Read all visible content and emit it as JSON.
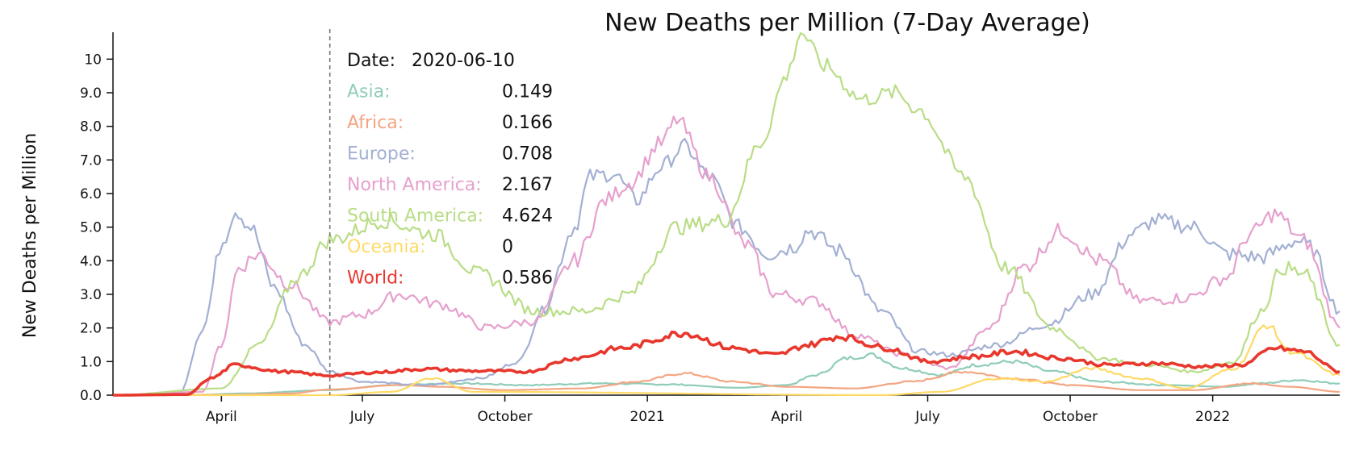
{
  "chart_data": {
    "type": "line",
    "title": "New Deaths per Million (7-Day Average)",
    "xlabel": "",
    "ylabel": "New Deaths per Million",
    "x_range": [
      "2020-01-22",
      "2022-03-24"
    ],
    "ylim": [
      0,
      10.8
    ],
    "y_ticks": [
      0,
      1,
      2,
      3,
      4,
      5,
      6,
      7,
      8,
      9,
      10
    ],
    "y_tick_labels": [
      "0.0",
      "1.0",
      "2.0",
      "3.0",
      "4.0",
      "5.0",
      "6.0",
      "7.0",
      "8.0",
      "9.0",
      "10"
    ],
    "x_ticks": [
      {
        "date": "2020-04-01",
        "label": "April"
      },
      {
        "date": "2020-07-01",
        "label": "July"
      },
      {
        "date": "2020-10-01",
        "label": "October"
      },
      {
        "date": "2021-01-01",
        "label": "2021"
      },
      {
        "date": "2021-04-01",
        "label": "April"
      },
      {
        "date": "2021-07-01",
        "label": "July"
      },
      {
        "date": "2021-10-01",
        "label": "October"
      },
      {
        "date": "2022-01-01",
        "label": "2022"
      }
    ],
    "grid": false,
    "legend": "tooltip at top-left",
    "hover_date": "2020-06-10",
    "series": [
      {
        "name": "Asia",
        "color": "#8fcdb8",
        "width": 2.2,
        "points": [
          [
            "2020-01-22",
            0
          ],
          [
            "2020-03-15",
            0.01
          ],
          [
            "2020-04-15",
            0.05
          ],
          [
            "2020-06-10",
            0.15
          ],
          [
            "2020-07-20",
            0.3
          ],
          [
            "2020-09-01",
            0.35
          ],
          [
            "2020-10-15",
            0.3
          ],
          [
            "2020-12-01",
            0.35
          ],
          [
            "2021-01-15",
            0.32
          ],
          [
            "2021-03-01",
            0.22
          ],
          [
            "2021-04-01",
            0.3
          ],
          [
            "2021-04-20",
            0.6
          ],
          [
            "2021-05-10",
            1.1
          ],
          [
            "2021-05-25",
            1.2
          ],
          [
            "2021-06-15",
            0.8
          ],
          [
            "2021-07-10",
            0.6
          ],
          [
            "2021-08-01",
            0.9
          ],
          [
            "2021-08-25",
            1.0
          ],
          [
            "2021-09-20",
            0.7
          ],
          [
            "2021-10-20",
            0.4
          ],
          [
            "2021-12-01",
            0.3
          ],
          [
            "2022-01-10",
            0.25
          ],
          [
            "2022-02-01",
            0.35
          ],
          [
            "2022-02-25",
            0.45
          ],
          [
            "2022-03-24",
            0.35
          ]
        ]
      },
      {
        "name": "Africa",
        "color": "#f4a582",
        "width": 2.2,
        "points": [
          [
            "2020-01-22",
            0
          ],
          [
            "2020-04-01",
            0.01
          ],
          [
            "2020-05-15",
            0.05
          ],
          [
            "2020-06-10",
            0.17
          ],
          [
            "2020-07-25",
            0.3
          ],
          [
            "2020-08-20",
            0.25
          ],
          [
            "2020-10-01",
            0.15
          ],
          [
            "2020-11-20",
            0.2
          ],
          [
            "2020-12-25",
            0.4
          ],
          [
            "2021-01-25",
            0.65
          ],
          [
            "2021-02-25",
            0.4
          ],
          [
            "2021-04-01",
            0.25
          ],
          [
            "2021-05-15",
            0.2
          ],
          [
            "2021-06-20",
            0.4
          ],
          [
            "2021-07-25",
            0.7
          ],
          [
            "2021-08-25",
            0.5
          ],
          [
            "2021-10-01",
            0.3
          ],
          [
            "2021-11-15",
            0.15
          ],
          [
            "2021-12-20",
            0.15
          ],
          [
            "2022-01-25",
            0.35
          ],
          [
            "2022-02-20",
            0.25
          ],
          [
            "2022-03-24",
            0.1
          ]
        ]
      },
      {
        "name": "Europe",
        "color": "#a3b0d3",
        "width": 2.2,
        "points": [
          [
            "2020-01-22",
            0
          ],
          [
            "2020-03-05",
            0.05
          ],
          [
            "2020-03-20",
            2.0
          ],
          [
            "2020-04-02",
            4.6
          ],
          [
            "2020-04-10",
            5.5
          ],
          [
            "2020-04-20",
            5.0
          ],
          [
            "2020-05-05",
            3.2
          ],
          [
            "2020-05-25",
            1.5
          ],
          [
            "2020-06-10",
            0.708
          ],
          [
            "2020-07-01",
            0.4
          ],
          [
            "2020-08-10",
            0.3
          ],
          [
            "2020-09-15",
            0.5
          ],
          [
            "2020-10-10",
            1.0
          ],
          [
            "2020-10-25",
            2.5
          ],
          [
            "2020-11-15",
            5.0
          ],
          [
            "2020-11-25",
            6.5
          ],
          [
            "2020-12-10",
            6.6
          ],
          [
            "2020-12-25",
            5.8
          ],
          [
            "2021-01-10",
            6.8
          ],
          [
            "2021-01-25",
            7.4
          ],
          [
            "2021-02-10",
            6.5
          ],
          [
            "2021-03-01",
            5.0
          ],
          [
            "2021-03-20",
            4.2
          ],
          [
            "2021-04-05",
            4.4
          ],
          [
            "2021-04-15",
            4.9
          ],
          [
            "2021-05-05",
            4.3
          ],
          [
            "2021-06-01",
            2.5
          ],
          [
            "2021-06-25",
            1.3
          ],
          [
            "2021-07-15",
            1.2
          ],
          [
            "2021-08-15",
            1.5
          ],
          [
            "2021-09-15",
            2.1
          ],
          [
            "2021-10-15",
            3.0
          ],
          [
            "2021-11-10",
            4.8
          ],
          [
            "2021-11-25",
            5.2
          ],
          [
            "2021-12-20",
            5.0
          ],
          [
            "2022-01-10",
            4.2
          ],
          [
            "2022-02-01",
            4.1
          ],
          [
            "2022-02-25",
            4.6
          ],
          [
            "2022-03-05",
            4.4
          ],
          [
            "2022-03-24",
            2.5
          ]
        ]
      },
      {
        "name": "North America",
        "color": "#e6a0cd",
        "width": 2.2,
        "points": [
          [
            "2020-01-22",
            0
          ],
          [
            "2020-03-20",
            0.1
          ],
          [
            "2020-04-01",
            1.5
          ],
          [
            "2020-04-12",
            3.8
          ],
          [
            "2020-04-25",
            4.2
          ],
          [
            "2020-05-15",
            3.3
          ],
          [
            "2020-06-10",
            2.167
          ],
          [
            "2020-07-01",
            2.4
          ],
          [
            "2020-07-25",
            3.0
          ],
          [
            "2020-08-20",
            2.7
          ],
          [
            "2020-09-20",
            2.0
          ],
          [
            "2020-10-20",
            2.2
          ],
          [
            "2020-11-15",
            4.0
          ],
          [
            "2020-12-05",
            5.8
          ],
          [
            "2020-12-20",
            6.3
          ],
          [
            "2021-01-10",
            7.5
          ],
          [
            "2021-01-20",
            8.2
          ],
          [
            "2021-02-10",
            6.5
          ],
          [
            "2021-03-05",
            4.5
          ],
          [
            "2021-03-25",
            3.0
          ],
          [
            "2021-04-20",
            2.8
          ],
          [
            "2021-05-15",
            1.8
          ],
          [
            "2021-06-15",
            1.2
          ],
          [
            "2021-07-15",
            0.8
          ],
          [
            "2021-08-10",
            2.0
          ],
          [
            "2021-09-01",
            3.8
          ],
          [
            "2021-09-25",
            4.9
          ],
          [
            "2021-10-20",
            4.0
          ],
          [
            "2021-11-15",
            2.8
          ],
          [
            "2021-12-15",
            2.9
          ],
          [
            "2022-01-10",
            3.5
          ],
          [
            "2022-01-25",
            4.8
          ],
          [
            "2022-02-10",
            5.4
          ],
          [
            "2022-03-01",
            4.6
          ],
          [
            "2022-03-24",
            2.0
          ]
        ]
      },
      {
        "name": "South America",
        "color": "#b9dd86",
        "width": 2.2,
        "points": [
          [
            "2020-01-22",
            0
          ],
          [
            "2020-04-01",
            0.2
          ],
          [
            "2020-04-25",
            1.5
          ],
          [
            "2020-05-20",
            3.5
          ],
          [
            "2020-06-10",
            4.624
          ],
          [
            "2020-07-15",
            5.2
          ],
          [
            "2020-08-15",
            4.8
          ],
          [
            "2020-09-15",
            3.6
          ],
          [
            "2020-10-20",
            2.5
          ],
          [
            "2020-11-20",
            2.5
          ],
          [
            "2020-12-20",
            3.0
          ],
          [
            "2021-01-20",
            5.0
          ],
          [
            "2021-02-20",
            5.2
          ],
          [
            "2021-03-15",
            7.5
          ],
          [
            "2021-04-01",
            9.5
          ],
          [
            "2021-04-10",
            10.8
          ],
          [
            "2021-04-25",
            9.8
          ],
          [
            "2021-05-20",
            8.8
          ],
          [
            "2021-06-10",
            9.0
          ],
          [
            "2021-06-25",
            8.5
          ],
          [
            "2021-07-25",
            6.5
          ],
          [
            "2021-08-20",
            3.8
          ],
          [
            "2021-09-20",
            2.0
          ],
          [
            "2021-10-20",
            1.1
          ],
          [
            "2021-11-20",
            0.9
          ],
          [
            "2021-12-20",
            0.7
          ],
          [
            "2022-01-15",
            1.0
          ],
          [
            "2022-02-01",
            2.5
          ],
          [
            "2022-02-15",
            3.8
          ],
          [
            "2022-03-01",
            3.6
          ],
          [
            "2022-03-24",
            1.5
          ]
        ]
      },
      {
        "name": "Oceania",
        "color": "#ffd966",
        "width": 2.2,
        "points": [
          [
            "2020-01-22",
            0
          ],
          [
            "2020-06-10",
            0
          ],
          [
            "2020-07-20",
            0.1
          ],
          [
            "2020-08-15",
            0.5
          ],
          [
            "2020-09-10",
            0.1
          ],
          [
            "2021-06-01",
            0
          ],
          [
            "2021-07-10",
            0.1
          ],
          [
            "2021-08-15",
            0.5
          ],
          [
            "2021-09-15",
            0.4
          ],
          [
            "2021-10-15",
            0.8
          ],
          [
            "2021-11-15",
            0.5
          ],
          [
            "2021-12-15",
            0.2
          ],
          [
            "2022-01-15",
            0.8
          ],
          [
            "2022-02-05",
            2.1
          ],
          [
            "2022-02-20",
            1.3
          ],
          [
            "2022-03-24",
            0.6
          ]
        ]
      },
      {
        "name": "World",
        "color": "#e8372c",
        "width": 3.6,
        "points": [
          [
            "2020-01-22",
            0
          ],
          [
            "2020-03-10",
            0.02
          ],
          [
            "2020-03-25",
            0.5
          ],
          [
            "2020-04-10",
            0.9
          ],
          [
            "2020-05-10",
            0.7
          ],
          [
            "2020-06-10",
            0.586
          ],
          [
            "2020-07-10",
            0.68
          ],
          [
            "2020-08-10",
            0.78
          ],
          [
            "2020-09-10",
            0.72
          ],
          [
            "2020-10-15",
            0.7
          ],
          [
            "2020-11-15",
            1.1
          ],
          [
            "2020-12-15",
            1.4
          ],
          [
            "2021-01-25",
            1.85
          ],
          [
            "2021-02-25",
            1.4
          ],
          [
            "2021-03-25",
            1.2
          ],
          [
            "2021-04-15",
            1.5
          ],
          [
            "2021-05-05",
            1.75
          ],
          [
            "2021-06-05",
            1.4
          ],
          [
            "2021-07-01",
            1.0
          ],
          [
            "2021-08-01",
            1.15
          ],
          [
            "2021-08-25",
            1.3
          ],
          [
            "2021-09-25",
            1.1
          ],
          [
            "2021-10-25",
            0.9
          ],
          [
            "2021-11-25",
            0.95
          ],
          [
            "2021-12-25",
            0.85
          ],
          [
            "2022-01-20",
            0.9
          ],
          [
            "2022-02-10",
            1.4
          ],
          [
            "2022-03-01",
            1.3
          ],
          [
            "2022-03-24",
            0.7
          ]
        ]
      }
    ],
    "tooltip": {
      "date_label": "Date:",
      "date_value": "2020-06-10",
      "rows": [
        {
          "label": "Asia:",
          "value": "0.149",
          "color": "#8fcdb8"
        },
        {
          "label": "Africa:",
          "value": "0.166",
          "color": "#f4a582"
        },
        {
          "label": "Europe:",
          "value": "0.708",
          "color": "#a3b0d3"
        },
        {
          "label": "North America:",
          "value": "2.167",
          "color": "#e6a0cd"
        },
        {
          "label": "South America:",
          "value": "4.624",
          "color": "#b9dd86"
        },
        {
          "label": "Oceania:",
          "value": "0",
          "color": "#ffd966"
        },
        {
          "label": "World:",
          "value": "0.586",
          "color": "#e8372c"
        }
      ]
    }
  }
}
